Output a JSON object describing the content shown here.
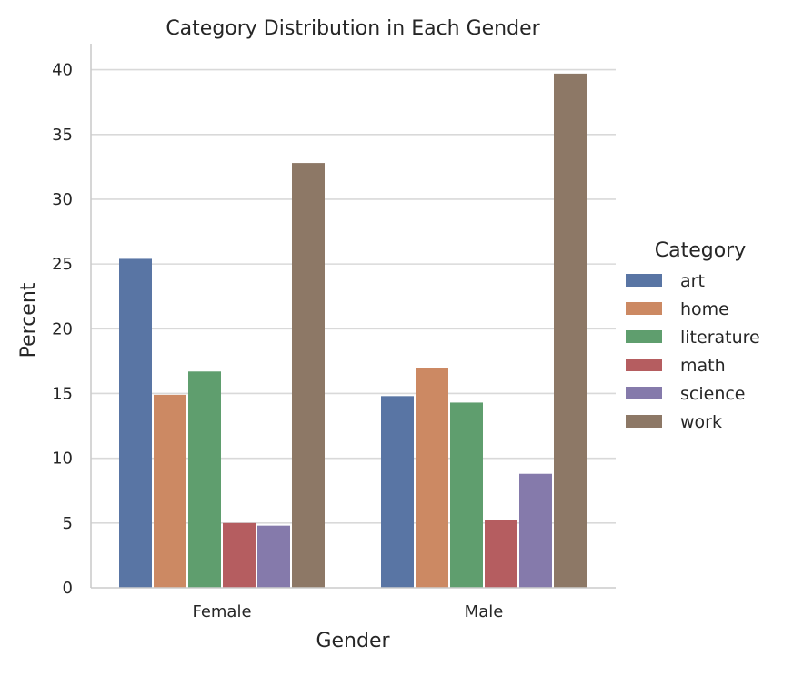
{
  "chart_data": {
    "type": "bar",
    "title": "Category Distribution in Each Gender",
    "xlabel": "Gender",
    "ylabel": "Percent",
    "categories": [
      "Female",
      "Male"
    ],
    "ylim": [
      0,
      42
    ],
    "yticks": [
      0,
      5,
      10,
      15,
      20,
      25,
      30,
      35,
      40
    ],
    "grid": "horizontal",
    "legend": {
      "title": "Category",
      "placement": "right"
    },
    "series": [
      {
        "name": "art",
        "color": "#5975a4",
        "values": [
          25.4,
          14.8
        ]
      },
      {
        "name": "home",
        "color": "#cc8963",
        "values": [
          14.9,
          17.0
        ]
      },
      {
        "name": "literature",
        "color": "#5f9e6e",
        "values": [
          16.7,
          14.3
        ]
      },
      {
        "name": "math",
        "color": "#b55d60",
        "values": [
          5.0,
          5.2
        ]
      },
      {
        "name": "science",
        "color": "#857aab",
        "values": [
          4.8,
          8.8
        ]
      },
      {
        "name": "work",
        "color": "#8d7866",
        "values": [
          32.8,
          39.7
        ]
      }
    ]
  }
}
